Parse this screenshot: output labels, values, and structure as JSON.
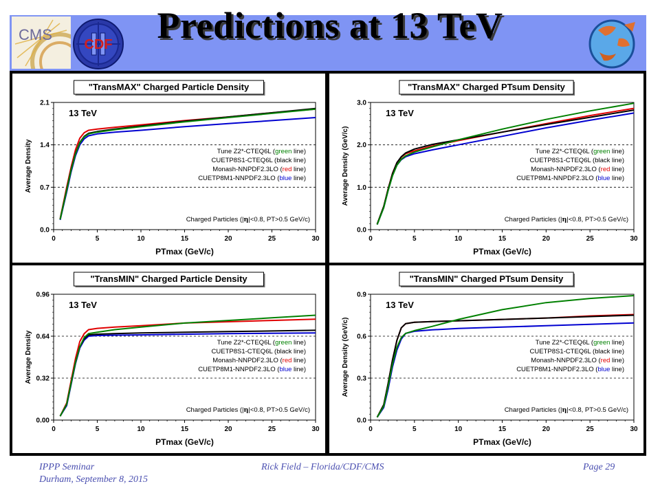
{
  "slide": {
    "title": "Predictions at 13 TeV",
    "logos": {
      "cms": "CMS",
      "cdf": "CDF",
      "cdf_numeral": "II"
    },
    "footer": {
      "left_line1": "IPPP Seminar",
      "left_line2": "Durham, September 8, 2015",
      "center": "Rick Field – Florida/CDF/CMS",
      "right": "Page 29"
    }
  },
  "legend_lines": [
    {
      "prefix": "Tune Z2*-CTEQ6L (",
      "colored": "green",
      "suffix": " line)",
      "color": "#008000"
    },
    {
      "prefix": "CUETP8S1-CTEQ6L (",
      "colored": "black",
      "suffix": " line)",
      "color": "#000000"
    },
    {
      "prefix": "Monash-NNPDF2.3LO (",
      "colored": "red",
      "suffix": " line)",
      "color": "#e00000"
    },
    {
      "prefix": "CUETP8M1-NNPDF2.3LO (",
      "colored": "blue",
      "suffix": " line)",
      "color": "#0000d0"
    }
  ],
  "chart_data": [
    {
      "type": "line",
      "title": "\"TransMAX\" Charged Particle Density",
      "annotation": "13 TeV",
      "cuts": {
        "pre": "Charged Particles (|",
        "eta": "η",
        "post": "|<0.8, PT>0.5 GeV/c)"
      },
      "xlabel": "PTmax (GeV/c)",
      "ylabel": "Average Density",
      "xlim": [
        0,
        30
      ],
      "ylim": [
        0,
        2.1
      ],
      "xticks": [
        0,
        5,
        10,
        15,
        20,
        25,
        30
      ],
      "yticks": [
        0.0,
        0.7,
        1.4,
        2.1
      ],
      "ytick_labels": [
        "0.0",
        "0.7",
        "1.4",
        "2.1"
      ],
      "grid": "dashed horizontal",
      "x": [
        0.75,
        1.5,
        2.0,
        2.5,
        3.0,
        3.5,
        4.0,
        5.0,
        7.0,
        10.0,
        15.0,
        20.0,
        25.0,
        30.0
      ],
      "series": [
        {
          "name": "Tune Z2*-CTEQ6L",
          "color": "#008000",
          "values": [
            0.17,
            0.65,
            0.98,
            1.25,
            1.43,
            1.53,
            1.58,
            1.61,
            1.65,
            1.7,
            1.78,
            1.85,
            1.92,
            1.99
          ]
        },
        {
          "name": "CUETP8S1-CTEQ6L",
          "color": "#000000",
          "values": [
            0.17,
            0.66,
            0.99,
            1.26,
            1.44,
            1.54,
            1.59,
            1.62,
            1.66,
            1.71,
            1.79,
            1.86,
            1.93,
            2.0
          ]
        },
        {
          "name": "Monash-NNPDF2.3LO",
          "color": "#e00000",
          "values": [
            0.18,
            0.7,
            1.03,
            1.32,
            1.51,
            1.6,
            1.64,
            1.66,
            1.69,
            1.73,
            1.8,
            1.86,
            1.93,
            1.99
          ]
        },
        {
          "name": "CUETP8M1-NNPDF2.3LO",
          "color": "#0000d0",
          "values": [
            0.16,
            0.62,
            0.95,
            1.22,
            1.4,
            1.5,
            1.55,
            1.58,
            1.61,
            1.64,
            1.7,
            1.75,
            1.8,
            1.85
          ]
        }
      ]
    },
    {
      "type": "line",
      "title": "\"TransMAX\" Charged PTsum Density",
      "annotation": "13 TeV",
      "cuts": {
        "pre": "Charged Particles (|",
        "eta": "η",
        "post": "|<0.8, PT>0.5 GeV/c)"
      },
      "xlabel": "PTmax (GeV/c)",
      "ylabel": "Average Density (GeV/c)",
      "xlim": [
        0,
        30
      ],
      "ylim": [
        0,
        3.0
      ],
      "xticks": [
        0,
        5,
        10,
        15,
        20,
        25,
        30
      ],
      "yticks": [
        0.0,
        1.0,
        2.0,
        3.0
      ],
      "ytick_labels": [
        "0.0",
        "1.0",
        "2.0",
        "3.0"
      ],
      "grid": "dashed horizontal",
      "x": [
        0.75,
        1.5,
        2.0,
        2.5,
        3.0,
        3.5,
        4.0,
        5.0,
        7.0,
        10.0,
        15.0,
        20.0,
        25.0,
        30.0
      ],
      "series": [
        {
          "name": "Tune Z2*-CTEQ6L",
          "color": "#008000",
          "values": [
            0.12,
            0.52,
            0.92,
            1.27,
            1.52,
            1.66,
            1.74,
            1.83,
            1.95,
            2.12,
            2.37,
            2.6,
            2.8,
            2.98
          ]
        },
        {
          "name": "CUETP8S1-CTEQ6L",
          "color": "#000000",
          "values": [
            0.13,
            0.55,
            0.95,
            1.32,
            1.58,
            1.72,
            1.81,
            1.9,
            2.01,
            2.12,
            2.3,
            2.48,
            2.65,
            2.82
          ]
        },
        {
          "name": "Monash-NNPDF2.3LO",
          "color": "#e00000",
          "values": [
            0.13,
            0.55,
            0.96,
            1.33,
            1.58,
            1.71,
            1.79,
            1.86,
            1.97,
            2.1,
            2.3,
            2.5,
            2.69,
            2.86
          ]
        },
        {
          "name": "CUETP8M1-NNPDF2.3LO",
          "color": "#0000d0",
          "values": [
            0.12,
            0.52,
            0.92,
            1.28,
            1.52,
            1.65,
            1.72,
            1.79,
            1.88,
            2.0,
            2.2,
            2.4,
            2.58,
            2.75
          ]
        }
      ]
    },
    {
      "type": "line",
      "title": "\"TransMIN\" Charged Particle Density",
      "annotation": "13 TeV",
      "cuts": {
        "pre": "Charged Particles (|",
        "eta": "η",
        "post": "|<0.8, PT>0.5 GeV/c)"
      },
      "xlabel": "PTmax (GeV/c)",
      "ylabel": "Average Density",
      "xlim": [
        0,
        30
      ],
      "ylim": [
        0,
        0.96
      ],
      "xticks": [
        0,
        5,
        10,
        15,
        20,
        25,
        30
      ],
      "yticks": [
        0.0,
        0.32,
        0.64,
        0.96
      ],
      "ytick_labels": [
        "0.00",
        "0.32",
        "0.64",
        "0.96"
      ],
      "grid": "dashed horizontal",
      "x": [
        0.75,
        1.5,
        2.0,
        2.5,
        3.0,
        3.5,
        4.0,
        5.0,
        7.0,
        10.0,
        15.0,
        20.0,
        25.0,
        30.0
      ],
      "series": [
        {
          "name": "Tune Z2*-CTEQ6L",
          "color": "#008000",
          "values": [
            0.03,
            0.12,
            0.28,
            0.44,
            0.56,
            0.63,
            0.66,
            0.67,
            0.69,
            0.71,
            0.74,
            0.76,
            0.78,
            0.8
          ]
        },
        {
          "name": "CUETP8S1-CTEQ6L",
          "color": "#000000",
          "values": [
            0.03,
            0.12,
            0.28,
            0.44,
            0.56,
            0.62,
            0.65,
            0.655,
            0.66,
            0.665,
            0.67,
            0.675,
            0.68,
            0.685
          ]
        },
        {
          "name": "Monash-NNPDF2.3LO",
          "color": "#e00000",
          "values": [
            0.03,
            0.13,
            0.3,
            0.47,
            0.6,
            0.66,
            0.69,
            0.7,
            0.71,
            0.72,
            0.74,
            0.75,
            0.76,
            0.77
          ]
        },
        {
          "name": "CUETP8M1-NNPDF2.3LO",
          "color": "#0000d0",
          "values": [
            0.03,
            0.11,
            0.27,
            0.43,
            0.55,
            0.61,
            0.64,
            0.645,
            0.648,
            0.65,
            0.655,
            0.66,
            0.662,
            0.665
          ]
        }
      ]
    },
    {
      "type": "line",
      "title": "\"TransMIN\" Charged PTsum Density",
      "annotation": "13 TeV",
      "cuts": {
        "pre": "Charged Particles (|",
        "eta": "η",
        "post": "|<0.8, PT>0.5 GeV/c)"
      },
      "xlabel": "PTmax (GeV/c)",
      "ylabel": "Average Density (GeV/c)",
      "xlim": [
        0,
        30
      ],
      "ylim": [
        0,
        0.9
      ],
      "xticks": [
        0,
        5,
        10,
        15,
        20,
        25,
        30
      ],
      "yticks": [
        0.0,
        0.3,
        0.6,
        0.9
      ],
      "ytick_labels": [
        "0.0",
        "0.3",
        "0.6",
        "0.9"
      ],
      "grid": "dashed horizontal",
      "x": [
        0.75,
        1.5,
        2.0,
        2.5,
        3.0,
        3.5,
        4.0,
        5.0,
        7.0,
        10.0,
        15.0,
        20.0,
        25.0,
        30.0
      ],
      "series": [
        {
          "name": "Tune Z2*-CTEQ6L",
          "color": "#008000",
          "values": [
            0.02,
            0.1,
            0.24,
            0.4,
            0.52,
            0.59,
            0.62,
            0.64,
            0.67,
            0.72,
            0.79,
            0.84,
            0.87,
            0.89
          ]
        },
        {
          "name": "CUETP8S1-CTEQ6L",
          "color": "#000000",
          "values": [
            0.02,
            0.11,
            0.26,
            0.43,
            0.57,
            0.66,
            0.69,
            0.7,
            0.705,
            0.71,
            0.72,
            0.73,
            0.74,
            0.75
          ]
        },
        {
          "name": "Monash-NNPDF2.3LO",
          "color": "#e00000",
          "values": [
            0.02,
            0.11,
            0.26,
            0.43,
            0.57,
            0.66,
            0.69,
            0.7,
            0.705,
            0.71,
            0.72,
            0.73,
            0.745,
            0.755
          ]
        },
        {
          "name": "CUETP8M1-NNPDF2.3LO",
          "color": "#0000d0",
          "values": [
            0.02,
            0.09,
            0.22,
            0.38,
            0.5,
            0.58,
            0.62,
            0.635,
            0.645,
            0.655,
            0.665,
            0.675,
            0.685,
            0.695
          ]
        }
      ]
    }
  ]
}
